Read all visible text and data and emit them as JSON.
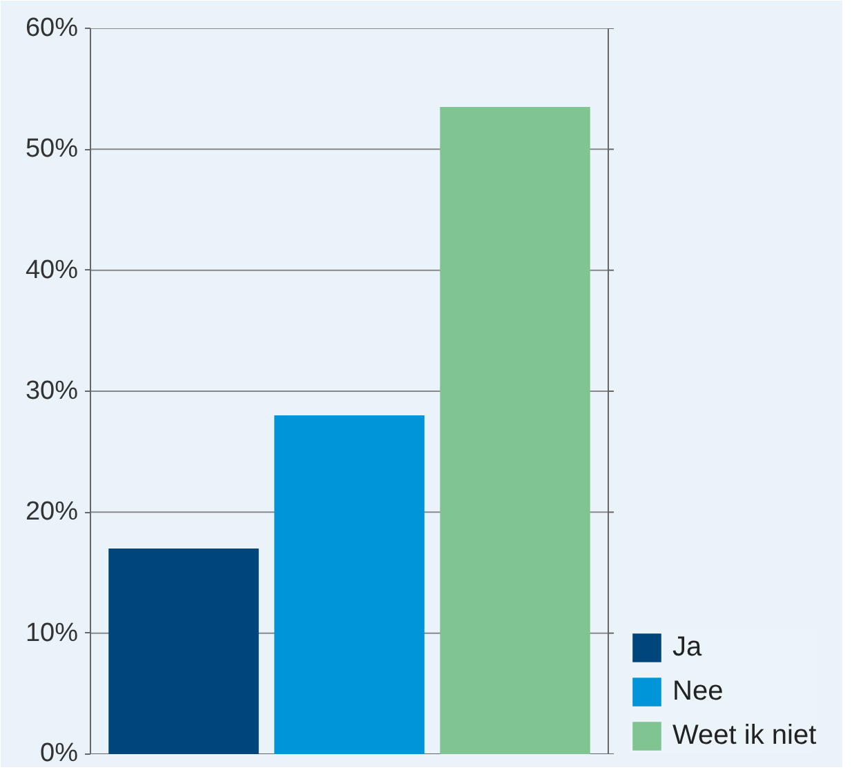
{
  "chart_data": {
    "type": "bar",
    "categories": [
      null
    ],
    "series": [
      {
        "name": "Ja",
        "color": "#00457c",
        "values": [
          17
        ]
      },
      {
        "name": "Nee",
        "color": "#0095d9",
        "values": [
          28
        ]
      },
      {
        "name": "Weet ik niet",
        "color": "#80c492",
        "values": [
          53.5
        ]
      }
    ],
    "ylim": [
      0,
      60
    ],
    "yticks": [
      {
        "value": 0,
        "label": "0%"
      },
      {
        "value": 10,
        "label": "10%"
      },
      {
        "value": 20,
        "label": "20%"
      },
      {
        "value": 30,
        "label": "30%"
      },
      {
        "value": 40,
        "label": "40%"
      },
      {
        "value": 50,
        "label": "50%"
      },
      {
        "value": 60,
        "label": "60%"
      }
    ],
    "grid": "y",
    "legend": "bottom right",
    "tick_labels": "y"
  }
}
